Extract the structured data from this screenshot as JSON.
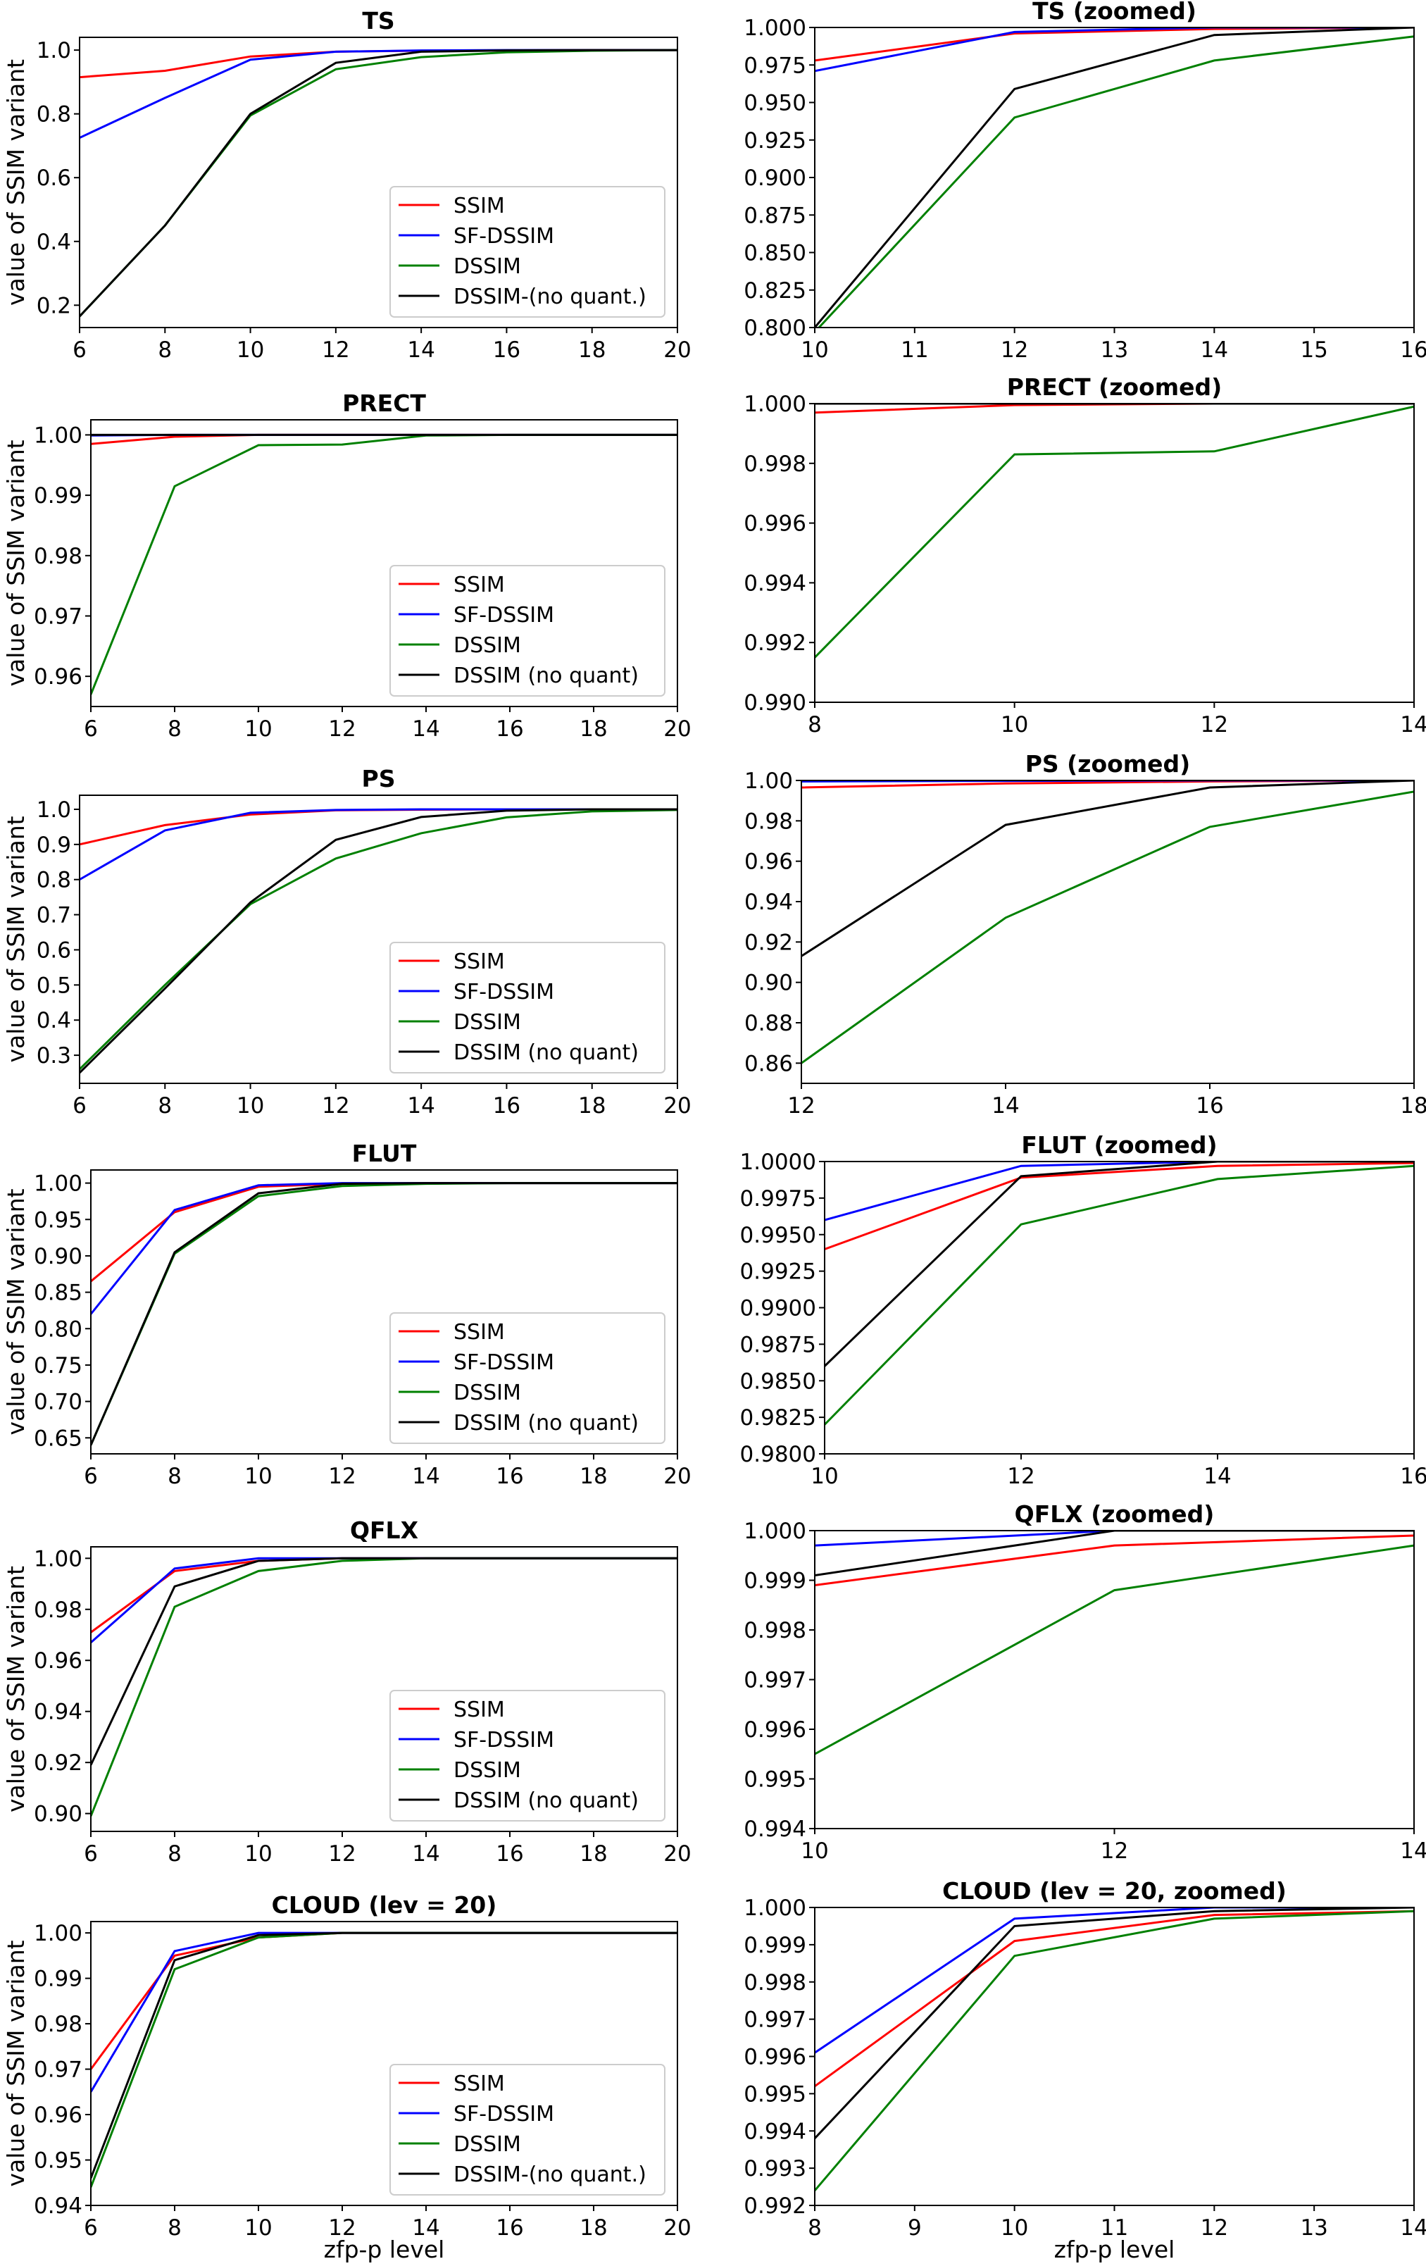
{
  "colors": {
    "SSIM": "#ff0000",
    "SF-DSSIM": "#0000ff",
    "DSSIM": "#008000",
    "noquant": "#000000"
  },
  "xlabel": "zfp-p level",
  "ylabel": "value of SSIM variant",
  "chart_data": [
    {
      "type": "line",
      "title": "TS",
      "legend": "lower right",
      "xlim": [
        6,
        20
      ],
      "ylim": [
        0.13,
        1.04
      ],
      "xticks": [
        "6",
        "8",
        "10",
        "12",
        "14",
        "16",
        "18",
        "20"
      ],
      "yticks": [
        "0.2",
        "0.4",
        "0.6",
        "0.8",
        "1.0"
      ],
      "x": [
        6,
        8,
        10,
        12,
        14,
        16,
        18,
        20
      ],
      "series": [
        {
          "name": "SSIM",
          "color_key": "SSIM",
          "values": [
            0.915,
            0.935,
            0.98,
            0.995,
            0.998,
            0.999,
            1,
            1
          ]
        },
        {
          "name": "SF-DSSIM",
          "color_key": "SF-DSSIM",
          "values": [
            0.725,
            0.85,
            0.97,
            0.995,
            0.999,
            1,
            1,
            1
          ]
        },
        {
          "name": "DSSIM",
          "color_key": "DSSIM",
          "values": [
            0.165,
            0.45,
            0.795,
            0.94,
            0.978,
            0.993,
            0.998,
            1
          ]
        },
        {
          "name": "DSSIM-(no quant.)",
          "color_key": "noquant",
          "values": [
            0.165,
            0.45,
            0.8,
            0.96,
            0.995,
            0.999,
            1,
            1
          ]
        }
      ]
    },
    {
      "type": "line",
      "title": "TS (zoomed)",
      "xlim": [
        10,
        16
      ],
      "ylim": [
        0.8,
        1.0
      ],
      "xticks": [
        "10",
        "11",
        "12",
        "13",
        "14",
        "15",
        "16"
      ],
      "yticks": [
        "0.800",
        "0.825",
        "0.850",
        "0.875",
        "0.900",
        "0.925",
        "0.950",
        "0.975",
        "1.000"
      ],
      "x": [
        10,
        12,
        14,
        16
      ],
      "series": [
        {
          "name": "SSIM",
          "color_key": "SSIM",
          "values": [
            0.978,
            0.996,
            0.999,
            1
          ]
        },
        {
          "name": "SF-DSSIM",
          "color_key": "SF-DSSIM",
          "values": [
            0.971,
            0.997,
            1,
            1
          ]
        },
        {
          "name": "DSSIM",
          "color_key": "DSSIM",
          "values": [
            0.797,
            0.94,
            0.978,
            0.994
          ]
        },
        {
          "name": "DSSIM-(no quant.)",
          "color_key": "noquant",
          "values": [
            0.8,
            0.959,
            0.995,
            1
          ]
        }
      ]
    },
    {
      "type": "line",
      "title": "PRECT",
      "legend": "lower right",
      "xlim": [
        6,
        20
      ],
      "ylim": [
        0.955,
        1.0025
      ],
      "xticks": [
        "6",
        "8",
        "10",
        "12",
        "14",
        "16",
        "18",
        "20"
      ],
      "yticks": [
        "0.96",
        "0.97",
        "0.98",
        "0.99",
        "1.00"
      ],
      "x": [
        6,
        8,
        10,
        12,
        14,
        16,
        18,
        20
      ],
      "series": [
        {
          "name": "SSIM",
          "color_key": "SSIM",
          "values": [
            0.9985,
            0.9997,
            1,
            1,
            1,
            1,
            1,
            1
          ]
        },
        {
          "name": "SF-DSSIM",
          "color_key": "SF-DSSIM",
          "values": [
            0.9999,
            1,
            1,
            1,
            1,
            1,
            1,
            1
          ]
        },
        {
          "name": "DSSIM",
          "color_key": "DSSIM",
          "values": [
            0.957,
            0.9915,
            0.9983,
            0.9984,
            0.9999,
            1,
            1,
            1
          ]
        },
        {
          "name": "DSSIM (no quant)",
          "color_key": "noquant",
          "values": [
            1,
            1,
            1,
            1,
            1,
            1,
            1,
            1
          ]
        }
      ]
    },
    {
      "type": "line",
      "title": "PRECT (zoomed)",
      "xlim": [
        8,
        14
      ],
      "ylim": [
        0.99,
        1.0
      ],
      "xticks": [
        "8",
        "10",
        "12",
        "14"
      ],
      "yticks": [
        "0.990",
        "0.992",
        "0.994",
        "0.996",
        "0.998",
        "1.000"
      ],
      "x": [
        8,
        10,
        12,
        14
      ],
      "series": [
        {
          "name": "SSIM",
          "color_key": "SSIM",
          "values": [
            0.9997,
            0.99995,
            1,
            1
          ]
        },
        {
          "name": "SF-DSSIM",
          "color_key": "SF-DSSIM",
          "values": [
            1,
            1,
            1,
            1
          ]
        },
        {
          "name": "DSSIM",
          "color_key": "DSSIM",
          "values": [
            0.9915,
            0.9983,
            0.9984,
            0.9999
          ]
        },
        {
          "name": "DSSIM (no quant)",
          "color_key": "noquant",
          "values": [
            1,
            1,
            1,
            1
          ]
        }
      ]
    },
    {
      "type": "line",
      "title": "PS",
      "legend": "lower right",
      "xlim": [
        6,
        20
      ],
      "ylim": [
        0.22,
        1.04
      ],
      "xticks": [
        "6",
        "8",
        "10",
        "12",
        "14",
        "16",
        "18",
        "20"
      ],
      "yticks": [
        "0.3",
        "0.4",
        "0.5",
        "0.6",
        "0.7",
        "0.8",
        "0.9",
        "1.0"
      ],
      "x": [
        6,
        8,
        10,
        12,
        14,
        16,
        18,
        20
      ],
      "series": [
        {
          "name": "SSIM",
          "color_key": "SSIM",
          "values": [
            0.9,
            0.955,
            0.985,
            0.997,
            0.999,
            1,
            1,
            1
          ]
        },
        {
          "name": "SF-DSSIM",
          "color_key": "SF-DSSIM",
          "values": [
            0.8,
            0.94,
            0.99,
            0.998,
            1,
            1,
            1,
            1
          ]
        },
        {
          "name": "DSSIM",
          "color_key": "DSSIM",
          "values": [
            0.26,
            0.5,
            0.73,
            0.86,
            0.932,
            0.977,
            0.994,
            0.998
          ]
        },
        {
          "name": "DSSIM (no quant)",
          "color_key": "noquant",
          "values": [
            0.25,
            0.49,
            0.735,
            0.913,
            0.978,
            0.996,
            1,
            1
          ]
        }
      ]
    },
    {
      "type": "line",
      "title": "PS (zoomed)",
      "xlim": [
        12,
        18
      ],
      "ylim": [
        0.85,
        1.0
      ],
      "xticks": [
        "12",
        "14",
        "16",
        "18"
      ],
      "yticks": [
        "0.86",
        "0.88",
        "0.90",
        "0.92",
        "0.94",
        "0.96",
        "0.98",
        "1.00"
      ],
      "x": [
        12,
        14,
        16,
        18
      ],
      "series": [
        {
          "name": "SSIM",
          "color_key": "SSIM",
          "values": [
            0.9965,
            0.9985,
            0.9995,
            1
          ]
        },
        {
          "name": "SF-DSSIM",
          "color_key": "SF-DSSIM",
          "values": [
            0.9995,
            0.9998,
            1,
            1
          ]
        },
        {
          "name": "DSSIM",
          "color_key": "DSSIM",
          "values": [
            0.86,
            0.932,
            0.977,
            0.9945
          ]
        },
        {
          "name": "DSSIM (no quant)",
          "color_key": "noquant",
          "values": [
            0.913,
            0.978,
            0.9965,
            1
          ]
        }
      ]
    },
    {
      "type": "line",
      "title": "FLUT",
      "legend": "lower right",
      "xlim": [
        6,
        20
      ],
      "ylim": [
        0.628,
        1.018
      ],
      "xticks": [
        "6",
        "8",
        "10",
        "12",
        "14",
        "16",
        "18",
        "20"
      ],
      "yticks": [
        "0.65",
        "0.70",
        "0.75",
        "0.80",
        "0.85",
        "0.90",
        "0.95",
        "1.00"
      ],
      "x": [
        6,
        8,
        10,
        12,
        14,
        16,
        18,
        20
      ],
      "series": [
        {
          "name": "SSIM",
          "color_key": "SSIM",
          "values": [
            0.865,
            0.96,
            0.995,
            0.999,
            1,
            1,
            1,
            1
          ]
        },
        {
          "name": "SF-DSSIM",
          "color_key": "SF-DSSIM",
          "values": [
            0.82,
            0.963,
            0.997,
            1,
            1,
            1,
            1,
            1
          ]
        },
        {
          "name": "DSSIM",
          "color_key": "DSSIM",
          "values": [
            0.64,
            0.903,
            0.982,
            0.996,
            0.999,
            1,
            1,
            1
          ]
        },
        {
          "name": "DSSIM (no quant)",
          "color_key": "noquant",
          "values": [
            0.64,
            0.905,
            0.986,
            0.999,
            1,
            1,
            1,
            1
          ]
        }
      ]
    },
    {
      "type": "line",
      "title": "FLUT (zoomed)",
      "xlim": [
        10,
        16
      ],
      "ylim": [
        0.98,
        1.0
      ],
      "xticks": [
        "10",
        "12",
        "14",
        "16"
      ],
      "yticks": [
        "0.9800",
        "0.9825",
        "0.9850",
        "0.9875",
        "0.9900",
        "0.9925",
        "0.9950",
        "0.9975",
        "1.0000"
      ],
      "x": [
        10,
        12,
        14,
        16
      ],
      "series": [
        {
          "name": "SSIM",
          "color_key": "SSIM",
          "values": [
            0.994,
            0.9989,
            0.9997,
            0.9999
          ]
        },
        {
          "name": "SF-DSSIM",
          "color_key": "SF-DSSIM",
          "values": [
            0.996,
            0.9997,
            1,
            1
          ]
        },
        {
          "name": "DSSIM",
          "color_key": "DSSIM",
          "values": [
            0.982,
            0.9957,
            0.9988,
            0.9997
          ]
        },
        {
          "name": "DSSIM (no quant)",
          "color_key": "noquant",
          "values": [
            0.986,
            0.999,
            1,
            1
          ]
        }
      ]
    },
    {
      "type": "line",
      "title": "QFLX",
      "legend": "lower right",
      "xlim": [
        6,
        20
      ],
      "ylim": [
        0.893,
        1.0045
      ],
      "xticks": [
        "6",
        "8",
        "10",
        "12",
        "14",
        "16",
        "18",
        "20"
      ],
      "yticks": [
        "0.90",
        "0.92",
        "0.94",
        "0.96",
        "0.98",
        "1.00"
      ],
      "x": [
        6,
        8,
        10,
        12,
        14,
        16,
        18,
        20
      ],
      "series": [
        {
          "name": "SSIM",
          "color_key": "SSIM",
          "values": [
            0.971,
            0.995,
            0.999,
            1,
            1,
            1,
            1,
            1
          ]
        },
        {
          "name": "SF-DSSIM",
          "color_key": "SF-DSSIM",
          "values": [
            0.967,
            0.996,
            1,
            1,
            1,
            1,
            1,
            1
          ]
        },
        {
          "name": "DSSIM",
          "color_key": "DSSIM",
          "values": [
            0.899,
            0.981,
            0.995,
            0.999,
            1,
            1,
            1,
            1
          ]
        },
        {
          "name": "DSSIM (no quant)",
          "color_key": "noquant",
          "values": [
            0.919,
            0.989,
            0.999,
            1,
            1,
            1,
            1,
            1
          ]
        }
      ]
    },
    {
      "type": "line",
      "title": "QFLX (zoomed)",
      "xlim": [
        10,
        14
      ],
      "ylim": [
        0.994,
        1.0
      ],
      "xticks": [
        "10",
        "12",
        "14"
      ],
      "yticks": [
        "0.994",
        "0.995",
        "0.996",
        "0.997",
        "0.998",
        "0.999",
        "1.000"
      ],
      "x": [
        10,
        12,
        14
      ],
      "series": [
        {
          "name": "SSIM",
          "color_key": "SSIM",
          "values": [
            0.9989,
            0.9997,
            0.9999
          ]
        },
        {
          "name": "SF-DSSIM",
          "color_key": "SF-DSSIM",
          "values": [
            0.9997,
            1,
            1
          ]
        },
        {
          "name": "DSSIM",
          "color_key": "DSSIM",
          "values": [
            0.9955,
            0.9988,
            0.9997
          ]
        },
        {
          "name": "DSSIM (no quant)",
          "color_key": "noquant",
          "values": [
            0.9991,
            1,
            1
          ]
        }
      ]
    },
    {
      "type": "line",
      "title": "CLOUD (lev = 20)",
      "legend": "lower right",
      "xlim": [
        6,
        20
      ],
      "ylim": [
        0.94,
        1.0025
      ],
      "xticks": [
        "6",
        "8",
        "10",
        "12",
        "14",
        "16",
        "18",
        "20"
      ],
      "yticks": [
        "0.94",
        "0.95",
        "0.96",
        "0.97",
        "0.98",
        "0.99",
        "1.00"
      ],
      "x": [
        6,
        8,
        10,
        12,
        14,
        16,
        18,
        20
      ],
      "series": [
        {
          "name": "SSIM",
          "color_key": "SSIM",
          "values": [
            0.97,
            0.995,
            0.999,
            1,
            1,
            1,
            1,
            1
          ]
        },
        {
          "name": "SF-DSSIM",
          "color_key": "SF-DSSIM",
          "values": [
            0.965,
            0.996,
            1,
            1,
            1,
            1,
            1,
            1
          ]
        },
        {
          "name": "DSSIM",
          "color_key": "DSSIM",
          "values": [
            0.944,
            0.992,
            0.999,
            1,
            1,
            1,
            1,
            1
          ]
        },
        {
          "name": "DSSIM-(no quant.)",
          "color_key": "noquant",
          "values": [
            0.946,
            0.994,
            0.9995,
            1,
            1,
            1,
            1,
            1
          ]
        }
      ]
    },
    {
      "type": "line",
      "title": "CLOUD (lev = 20, zoomed)",
      "xlim": [
        8,
        14
      ],
      "ylim": [
        0.992,
        1.0
      ],
      "xticks": [
        "8",
        "9",
        "10",
        "11",
        "12",
        "13",
        "14"
      ],
      "yticks": [
        "0.992",
        "0.993",
        "0.994",
        "0.995",
        "0.996",
        "0.997",
        "0.998",
        "0.999",
        "1.000"
      ],
      "x": [
        8,
        10,
        12,
        14
      ],
      "series": [
        {
          "name": "SSIM",
          "color_key": "SSIM",
          "values": [
            0.9952,
            0.9991,
            0.9998,
            0.9999
          ]
        },
        {
          "name": "SF-DSSIM",
          "color_key": "SF-DSSIM",
          "values": [
            0.9961,
            0.9997,
            1,
            1
          ]
        },
        {
          "name": "DSSIM",
          "color_key": "DSSIM",
          "values": [
            0.9924,
            0.9987,
            0.9997,
            0.9999
          ]
        },
        {
          "name": "DSSIM (no quant)",
          "color_key": "noquant",
          "values": [
            0.9938,
            0.9995,
            0.9999,
            1
          ]
        }
      ]
    }
  ]
}
